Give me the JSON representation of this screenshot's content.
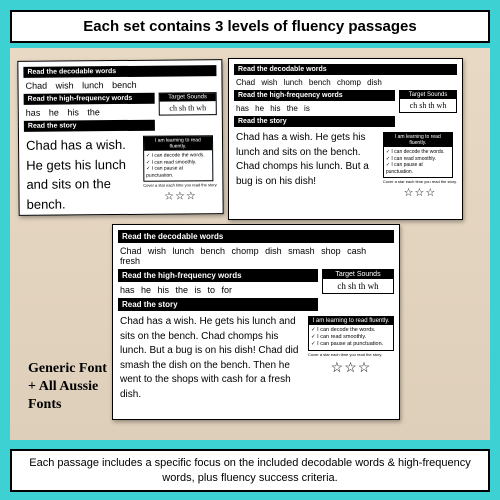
{
  "top_banner": "Each set contains 3 levels of fluency passages",
  "bottom_banner": "Each passage includes a specific focus on the included decodable words & high-frequency words, plus fluency success criteria.",
  "side_label_line1": "Generic Font",
  "side_label_line2": "+ All Aussie",
  "side_label_line3": "Fonts",
  "headers": {
    "decodable": "Read the decodable words",
    "hfw": "Read the high-frequency words",
    "story": "Read the story"
  },
  "target": {
    "head": "Target Sounds",
    "body": "ch sh th wh"
  },
  "learn": {
    "head": "I am learning to read fluently.",
    "item1": "I can decode the words.",
    "item2": "I can read smoothly.",
    "item3": "I can pause at punctuation.",
    "stars_note": "Cover a star each time you read the story."
  },
  "card1": {
    "decodable": "Chad  wish  lunch  bench",
    "hfw": "has   he   his   the",
    "story": "Chad has a wish. He gets his lunch and sits on the bench."
  },
  "card2": {
    "decodable": "Chad  wish  lunch  bench  chomp  dish",
    "hfw": "has   he   his   the   is",
    "story": "Chad has a wish. He gets his lunch and sits on the bench. Chad chomps his lunch. But a bug is on his dish!"
  },
  "card3": {
    "decodable": "Chad wish lunch bench chomp dish smash shop cash fresh",
    "hfw": "has  he  his  the  is  to  for",
    "story": "Chad has a wish. He gets his lunch and sits on the bench. Chad chomps his lunch. But a bug is on his dish! Chad did smash the dish on the bench. Then he went to the shops with cash for a fresh dish."
  },
  "colors": {
    "background": "#3dd1d4",
    "wood": "#e3d4bf",
    "black": "#000000",
    "white": "#ffffff"
  }
}
